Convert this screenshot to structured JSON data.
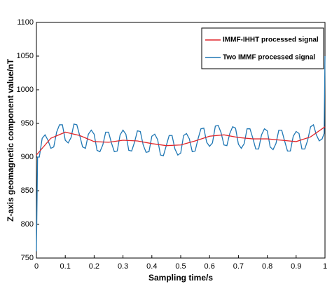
{
  "chart_data": {
    "type": "line",
    "xlabel": "Sampling time/s",
    "ylabel": "Z-axis geomagnetic component value/nT",
    "xlim": [
      0,
      1
    ],
    "xticks": [
      0,
      0.1,
      0.2,
      0.3,
      0.4,
      0.5,
      0.6,
      0.7,
      0.8,
      0.9,
      1
    ],
    "ylim": [
      750,
      1100
    ],
    "yticks": [
      750,
      800,
      850,
      900,
      950,
      1000,
      1050,
      1100
    ],
    "legend": "upper right",
    "series": [
      {
        "name": "IMMF-IHHT processed signal",
        "color": "#e0262b",
        "x": [
          0,
          0.05,
          0.1,
          0.15,
          0.2,
          0.25,
          0.3,
          0.35,
          0.4,
          0.45,
          0.5,
          0.55,
          0.6,
          0.65,
          0.7,
          0.75,
          0.8,
          0.85,
          0.9,
          0.95,
          1
        ],
        "values": [
          903,
          928,
          937,
          932,
          923,
          922,
          925,
          924,
          920,
          917,
          918,
          924,
          931,
          933,
          929,
          927,
          927,
          925,
          923,
          930,
          945
        ]
      },
      {
        "name": "Two IMMF processed signal",
        "color": "#1f77b4",
        "x": [
          0,
          0.004,
          0.01,
          0.02,
          0.03,
          0.04,
          0.05,
          0.06,
          0.07,
          0.08,
          0.09,
          0.1,
          0.11,
          0.12,
          0.13,
          0.14,
          0.15,
          0.16,
          0.17,
          0.18,
          0.19,
          0.2,
          0.21,
          0.22,
          0.23,
          0.24,
          0.25,
          0.26,
          0.27,
          0.28,
          0.29,
          0.3,
          0.31,
          0.32,
          0.33,
          0.34,
          0.35,
          0.36,
          0.37,
          0.38,
          0.39,
          0.4,
          0.41,
          0.42,
          0.43,
          0.44,
          0.45,
          0.46,
          0.47,
          0.48,
          0.49,
          0.5,
          0.51,
          0.52,
          0.53,
          0.54,
          0.55,
          0.56,
          0.57,
          0.58,
          0.59,
          0.6,
          0.61,
          0.62,
          0.63,
          0.64,
          0.65,
          0.66,
          0.67,
          0.68,
          0.69,
          0.7,
          0.71,
          0.72,
          0.73,
          0.74,
          0.75,
          0.76,
          0.77,
          0.78,
          0.79,
          0.8,
          0.81,
          0.82,
          0.83,
          0.84,
          0.85,
          0.86,
          0.87,
          0.88,
          0.89,
          0.9,
          0.91,
          0.92,
          0.93,
          0.94,
          0.95,
          0.96,
          0.97,
          0.98,
          0.99,
          0.997,
          1
        ],
        "values": [
          760,
          900,
          900,
          928,
          933,
          925,
          913,
          915,
          937,
          948,
          948,
          925,
          921,
          929,
          949,
          948,
          932,
          915,
          913,
          934,
          940,
          934,
          910,
          908,
          918,
          937,
          937,
          921,
          908,
          909,
          933,
          940,
          934,
          910,
          909,
          922,
          939,
          938,
          918,
          907,
          908,
          931,
          934,
          926,
          903,
          902,
          917,
          932,
          932,
          912,
          903,
          906,
          932,
          935,
          927,
          908,
          909,
          927,
          942,
          943,
          922,
          916,
          921,
          946,
          947,
          936,
          918,
          917,
          935,
          945,
          943,
          919,
          913,
          920,
          942,
          942,
          928,
          912,
          912,
          933,
          942,
          939,
          915,
          911,
          920,
          940,
          940,
          924,
          909,
          909,
          931,
          938,
          935,
          912,
          912,
          925,
          945,
          948,
          933,
          924,
          927,
          935,
          1050
        ]
      }
    ]
  }
}
